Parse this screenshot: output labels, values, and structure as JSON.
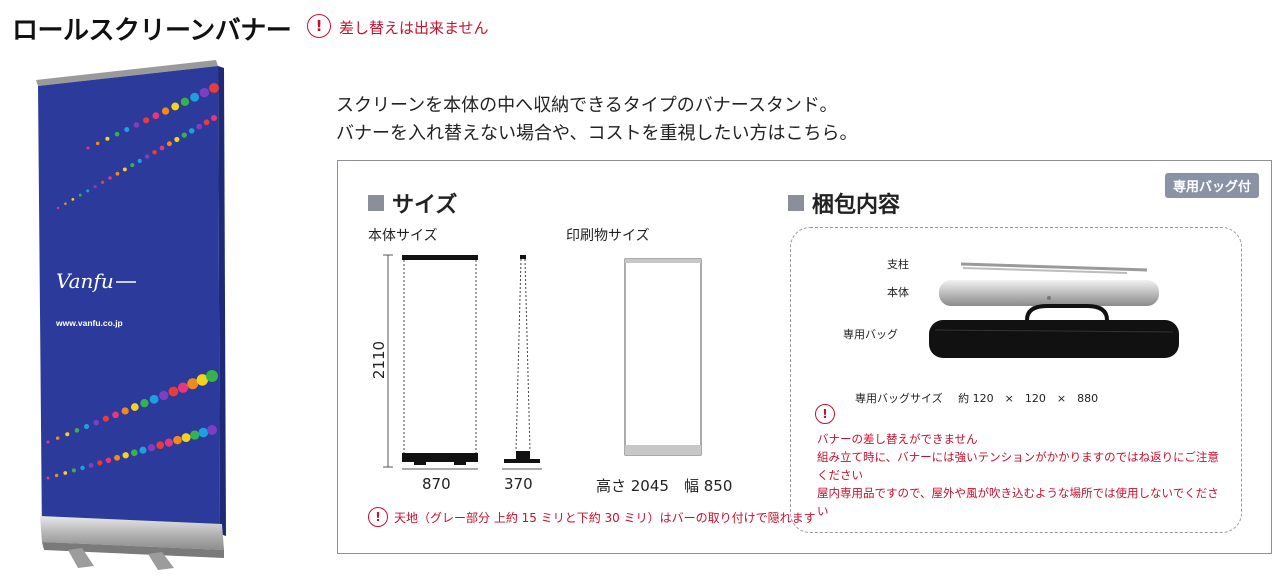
{
  "header": {
    "title": "ロールスクリーンバナー",
    "warning_symbol": "!",
    "note": "差し替えは出来ません"
  },
  "banner": {
    "brand": "Vanfu",
    "url": "www.vanfu.co.jp",
    "bg_color": "#2b3a9b",
    "dot_colors": [
      "#e8367c",
      "#f08a1c",
      "#f5d21e",
      "#35b34a",
      "#1ea0e0",
      "#7d3fc0",
      "#e83b3b"
    ]
  },
  "intro": {
    "line1": "スクリーンを本体の中へ収納できるタイプのバナースタンド。",
    "line2": "バナーを入れ替えない場合や、コストを重視したい方はこちら。"
  },
  "panel": {
    "tag": "専用バッグ付",
    "size_section": {
      "heading": "サイズ",
      "body_label": "本体サイズ",
      "print_label": "印刷物サイズ",
      "height": "2110",
      "width": "870",
      "depth": "370",
      "print_height_label": "高さ 2045",
      "print_width_label": "幅 850",
      "note": "天地（グレー部分 上約 15 ミリと下約 30 ミリ）はバーの取り付けで隠れます"
    },
    "contents_section": {
      "heading": "梱包内容",
      "items": {
        "pole": "支柱",
        "body": "本体",
        "bag": "専用バッグ"
      },
      "bag_size_label": "専用バッグサイズ",
      "bag_size_value": "約 120　×　120　×　880",
      "notes": [
        "バナーの差し替えができません",
        "組み立て時に、バナーには強いテンションがかかりますのではね返りにご注意ください",
        "屋内専用品ですので、屋外や風が吹き込むような場所では使用しないでください"
      ]
    }
  },
  "colors": {
    "warning": "#c8102e",
    "tag_bg": "#8a93a6",
    "heading_square": "#8a8f99"
  }
}
